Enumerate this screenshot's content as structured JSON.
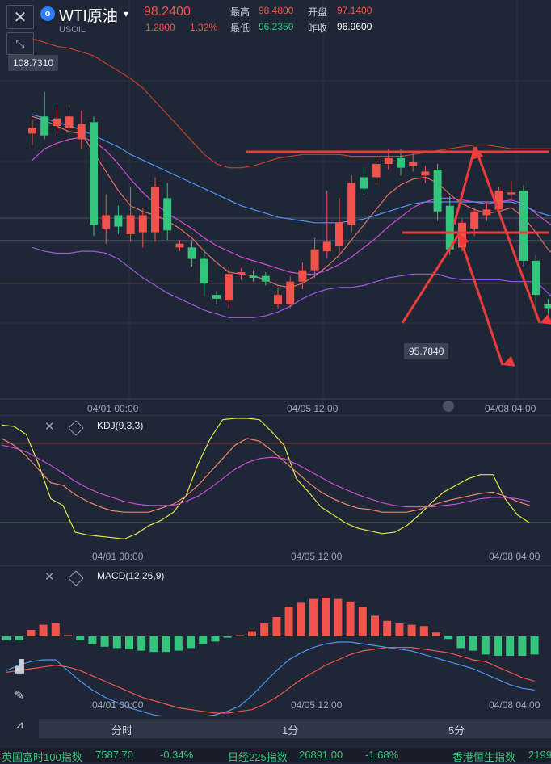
{
  "header": {
    "close_icon": "close-icon",
    "shrink_icon": "shrink-icon",
    "logo_letter": "o",
    "symbol_name": "WTI原油",
    "symbol_code": "USOIL",
    "dropdown_glyph": "▾",
    "last_price": "98.2400",
    "change": "1.2800",
    "change_pct": "1.32%",
    "stats": {
      "high_label": "最高",
      "high": "98.4800",
      "open_label": "开盘",
      "open": "97.1400",
      "low_label": "最低",
      "low": "96.2350",
      "prev_label": "昨收",
      "prev": "96.9600"
    }
  },
  "main_chart": {
    "max_tag": "108.7310",
    "min_tag": "95.7840",
    "time_labels": [
      "04/01 00:00",
      "04/05 12:00",
      "04/08 04:00"
    ]
  },
  "kdj": {
    "title": "KDJ(9,3,3)",
    "time_labels": [
      "04/01 00:00",
      "04/05 12:00",
      "04/08 04:00"
    ]
  },
  "macd": {
    "title": "MACD(12,26,9)",
    "time_labels": [
      "04/01 00:00",
      "04/05 12:00",
      "04/08 04:00"
    ]
  },
  "periods": [
    "分时",
    "1分",
    "5分"
  ],
  "ticker": [
    {
      "name": "英国富时100指数",
      "value": "7587.70",
      "change": "-0.34%"
    },
    {
      "name": "日经225指数",
      "value": "26891.00",
      "change": "-1.68%"
    },
    {
      "name": "香港恒生指数",
      "value": "2199"
    }
  ],
  "colors": {
    "background": "#1f2636",
    "up": "#f0534b",
    "down": "#35c47c",
    "annotation": "#ef3b3b"
  },
  "chart_data": {
    "type": "candlestick",
    "candles": [
      {
        "o": 105.6,
        "c": 105.9,
        "h": 106.3,
        "l": 105.0
      },
      {
        "o": 106.5,
        "c": 105.5,
        "h": 107.8,
        "l": 105.3
      },
      {
        "o": 106.0,
        "c": 106.4,
        "h": 107.0,
        "l": 105.6
      },
      {
        "o": 105.9,
        "c": 106.5,
        "h": 107.1,
        "l": 105.3
      },
      {
        "o": 105.3,
        "c": 106.1,
        "h": 106.8,
        "l": 104.8
      },
      {
        "o": 106.2,
        "c": 100.8,
        "h": 106.5,
        "l": 100.2
      },
      {
        "o": 100.6,
        "c": 101.3,
        "h": 102.4,
        "l": 99.8
      },
      {
        "o": 101.3,
        "c": 100.7,
        "h": 101.8,
        "l": 100.3
      },
      {
        "o": 100.3,
        "c": 101.3,
        "h": 102.8,
        "l": 99.9
      },
      {
        "o": 100.4,
        "c": 101.3,
        "h": 101.7,
        "l": 99.6
      },
      {
        "o": 100.4,
        "c": 102.8,
        "h": 103.3,
        "l": 99.9
      },
      {
        "o": 102.2,
        "c": 100.5,
        "h": 103.0,
        "l": 100.0
      },
      {
        "o": 99.6,
        "c": 99.8,
        "h": 100.0,
        "l": 99.4
      },
      {
        "o": 99.6,
        "c": 99.0,
        "h": 100.0,
        "l": 98.6
      },
      {
        "o": 99.0,
        "c": 97.7,
        "h": 99.5,
        "l": 97.0
      },
      {
        "o": 97.1,
        "c": 96.9,
        "h": 97.3,
        "l": 96.6
      },
      {
        "o": 96.8,
        "c": 98.2,
        "h": 98.6,
        "l": 96.4
      },
      {
        "o": 98.2,
        "c": 98.3,
        "h": 98.5,
        "l": 97.9
      },
      {
        "o": 98.1,
        "c": 98.0,
        "h": 98.4,
        "l": 97.8
      },
      {
        "o": 98.1,
        "c": 97.8,
        "h": 98.3,
        "l": 97.6
      },
      {
        "o": 96.6,
        "c": 97.1,
        "h": 97.5,
        "l": 96.4
      },
      {
        "o": 96.6,
        "c": 97.8,
        "h": 98.1,
        "l": 96.4
      },
      {
        "o": 97.8,
        "c": 98.4,
        "h": 98.8,
        "l": 97.4
      },
      {
        "o": 98.4,
        "c": 99.5,
        "h": 100.1,
        "l": 98.0
      },
      {
        "o": 99.4,
        "c": 99.9,
        "h": 102.6,
        "l": 99.0
      },
      {
        "o": 99.7,
        "c": 100.9,
        "h": 102.2,
        "l": 99.3
      },
      {
        "o": 100.8,
        "c": 103.0,
        "h": 103.4,
        "l": 100.4
      },
      {
        "o": 103.3,
        "c": 102.7,
        "h": 103.8,
        "l": 102.4
      },
      {
        "o": 103.3,
        "c": 104.0,
        "h": 104.4,
        "l": 102.9
      },
      {
        "o": 104.0,
        "c": 104.3,
        "h": 104.8,
        "l": 103.7
      },
      {
        "o": 104.3,
        "c": 103.8,
        "h": 104.8,
        "l": 103.4
      },
      {
        "o": 103.9,
        "c": 104.1,
        "h": 104.6,
        "l": 103.6
      },
      {
        "o": 103.4,
        "c": 103.6,
        "h": 103.9,
        "l": 103.0
      },
      {
        "o": 103.7,
        "c": 101.5,
        "h": 104.0,
        "l": 101.0
      },
      {
        "o": 101.8,
        "c": 99.5,
        "h": 102.3,
        "l": 99.2
      },
      {
        "o": 99.6,
        "c": 100.9,
        "h": 101.1,
        "l": 99.4
      },
      {
        "o": 100.6,
        "c": 101.5,
        "h": 101.7,
        "l": 100.2
      },
      {
        "o": 101.3,
        "c": 101.6,
        "h": 102.0,
        "l": 101.0
      },
      {
        "o": 101.6,
        "c": 102.6,
        "h": 102.8,
        "l": 101.3
      },
      {
        "o": 102.4,
        "c": 102.5,
        "h": 103.1,
        "l": 102.1
      },
      {
        "o": 102.6,
        "c": 98.9,
        "h": 102.9,
        "l": 98.6
      },
      {
        "o": 98.9,
        "c": 97.1,
        "h": 99.2,
        "l": 96.0
      },
      {
        "o": 96.6,
        "c": 96.4,
        "h": 96.9,
        "l": 96.1
      },
      {
        "o": 96.5,
        "c": 98.2,
        "h": 98.5,
        "l": 96.2
      }
    ],
    "ma_overlays": [
      {
        "color": "#e07063",
        "values": [
          106.5,
          106.3,
          106.0,
          105.7,
          105.6,
          104.6,
          103.6,
          102.6,
          101.8,
          101.5,
          101.3,
          101.0,
          100.6,
          100.1,
          99.4,
          98.8,
          98.3,
          98.2,
          98.1,
          97.9,
          97.6,
          97.5,
          97.7,
          98.1,
          98.6,
          99.2,
          100.0,
          100.8,
          101.6,
          102.4,
          102.9,
          103.2,
          103.3,
          103.0,
          102.4,
          101.9,
          101.6,
          101.4,
          101.5,
          101.7,
          101.2,
          100.4,
          99.5,
          98.9
        ]
      },
      {
        "color": "#d44bd6",
        "values": [
          104.2,
          104.8,
          105.1,
          105.3,
          105.4,
          105.2,
          104.7,
          104.0,
          103.2,
          102.5,
          101.9,
          101.4,
          101.0,
          100.6,
          100.1,
          99.7,
          99.4,
          99.1,
          98.9,
          98.7,
          98.5,
          98.3,
          98.2,
          98.2,
          98.4,
          98.7,
          99.1,
          99.6,
          100.1,
          100.7,
          101.2,
          101.7,
          102.0,
          102.2,
          102.2,
          102.1,
          102.0,
          101.9,
          102.0,
          102.1,
          101.9,
          101.4,
          100.9,
          100.5
        ]
      },
      {
        "color": "#4f93f2",
        "values": [
          106.6,
          106.4,
          106.2,
          106.0,
          105.8,
          105.5,
          105.2,
          104.9,
          104.5,
          104.2,
          103.9,
          103.6,
          103.3,
          103.0,
          102.7,
          102.4,
          102.1,
          101.8,
          101.6,
          101.4,
          101.2,
          101.1,
          101.0,
          100.9,
          100.9,
          100.9,
          101.0,
          101.1,
          101.3,
          101.5,
          101.7,
          101.9,
          102.0,
          102.0,
          102.0,
          102.0,
          102.0,
          102.0,
          102.0,
          102.0,
          101.8,
          101.5,
          101.3,
          101.2
        ]
      },
      {
        "color": "#c04030",
        "values": [
          110.6,
          110.4,
          110.2,
          110.1,
          109.9,
          109.7,
          109.3,
          108.9,
          108.5,
          108.0,
          107.3,
          106.6,
          105.9,
          105.2,
          104.5,
          104.0,
          103.8,
          103.8,
          103.9,
          104.1,
          104.3,
          104.4,
          104.5,
          104.5,
          104.5,
          104.5,
          104.4,
          104.4,
          104.4,
          104.4,
          104.4,
          104.5,
          104.6,
          104.7,
          104.8,
          104.9,
          105.0,
          105.0,
          104.9,
          104.8,
          104.8,
          104.8,
          104.8,
          104.8
        ]
      },
      {
        "color": "#9b58e6",
        "values": [
          99.6,
          99.4,
          99.3,
          99.3,
          99.4,
          99.4,
          99.3,
          99.0,
          98.5,
          98.0,
          97.6,
          97.2,
          96.9,
          96.6,
          96.3,
          96.1,
          95.9,
          95.9,
          95.9,
          96.0,
          96.2,
          96.5,
          96.9,
          97.2,
          97.4,
          97.5,
          97.5,
          97.6,
          97.8,
          98.0,
          98.1,
          98.2,
          98.2,
          98.2,
          98.0,
          97.9,
          97.9,
          97.9,
          97.9,
          97.8,
          97.8,
          97.8,
          97.2,
          96.6
        ]
      }
    ],
    "kdj": {
      "K": [
        85,
        80,
        72,
        62,
        52,
        50,
        43,
        38,
        34,
        31,
        30,
        30,
        30,
        33,
        36,
        42,
        50,
        60,
        70,
        80,
        85,
        83,
        76,
        68,
        60,
        52,
        45,
        40,
        36,
        33,
        32,
        30,
        30,
        30,
        32,
        35,
        38,
        40,
        42,
        44,
        45,
        42,
        38,
        35
      ],
      "D": [
        80,
        78,
        75,
        70,
        65,
        59,
        53,
        48,
        44,
        41,
        38,
        36,
        35,
        35,
        35,
        38,
        42,
        48,
        55,
        62,
        67,
        70,
        71,
        70,
        66,
        61,
        56,
        51,
        47,
        43,
        40,
        37,
        35,
        34,
        34,
        34,
        35,
        36,
        38,
        40,
        41,
        41,
        40,
        38
      ],
      "J": [
        95,
        94,
        88,
        66,
        40,
        35,
        15,
        13,
        12,
        11,
        10,
        14,
        20,
        24,
        30,
        42,
        66,
        85,
        99,
        100,
        100,
        99,
        90,
        80,
        55,
        45,
        34,
        28,
        22,
        18,
        16,
        14,
        15,
        20,
        28,
        37,
        45,
        50,
        55,
        58,
        58,
        40,
        28,
        22
      ]
    },
    "macd": {
      "histogram": [
        -0.3,
        -0.3,
        0.5,
        0.9,
        1.0,
        0.1,
        -0.3,
        -0.6,
        -0.8,
        -0.9,
        -1.0,
        -1.1,
        -1.2,
        -1.2,
        -1.1,
        -0.9,
        -0.6,
        -0.4,
        -0.1,
        0.1,
        0.4,
        1.0,
        1.5,
        2.3,
        2.6,
        2.9,
        3.0,
        2.9,
        2.7,
        2.3,
        1.6,
        1.2,
        1.0,
        0.9,
        0.8,
        0.3,
        -0.2,
        -0.9,
        -1.1,
        -1.4,
        -1.5,
        -1.5,
        -1.5,
        -1.4
      ],
      "dif": [
        -0.1,
        0.2,
        0.4,
        0.5,
        0.5,
        -0.1,
        -0.7,
        -1.2,
        -1.6,
        -1.9,
        -2.2,
        -2.4,
        -2.6,
        -2.7,
        -2.8,
        -2.8,
        -2.7,
        -2.6,
        -2.4,
        -2.1,
        -1.5,
        -0.8,
        -0.1,
        0.5,
        0.9,
        1.2,
        1.4,
        1.5,
        1.5,
        1.4,
        1.3,
        1.2,
        1.1,
        1.0,
        0.8,
        0.6,
        0.4,
        0.2,
        0.0,
        -0.3,
        -0.6,
        -0.9,
        -1.1,
        -1.2
      ],
      "dea": [
        -0.2,
        -0.1,
        0.0,
        0.1,
        0.2,
        0.1,
        -0.1,
        -0.4,
        -0.7,
        -1.0,
        -1.3,
        -1.6,
        -1.8,
        -2.0,
        -2.2,
        -2.3,
        -2.4,
        -2.5,
        -2.5,
        -2.4,
        -2.3,
        -2.0,
        -1.6,
        -1.1,
        -0.6,
        -0.2,
        0.2,
        0.5,
        0.8,
        1.0,
        1.1,
        1.2,
        1.2,
        1.2,
        1.1,
        1.0,
        0.9,
        0.7,
        0.5,
        0.4,
        0.1,
        -0.2,
        -0.5,
        -0.7
      ]
    }
  }
}
